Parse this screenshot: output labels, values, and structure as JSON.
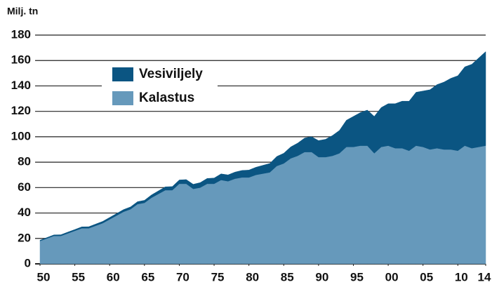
{
  "chart_data": {
    "type": "area",
    "stacked": true,
    "y_label": "Milj. tn",
    "x": [
      1950,
      1951,
      1952,
      1953,
      1954,
      1955,
      1956,
      1957,
      1958,
      1959,
      1960,
      1961,
      1962,
      1963,
      1964,
      1965,
      1966,
      1967,
      1968,
      1969,
      1970,
      1971,
      1972,
      1973,
      1974,
      1975,
      1976,
      1977,
      1978,
      1979,
      1980,
      1981,
      1982,
      1983,
      1984,
      1985,
      1986,
      1987,
      1988,
      1989,
      1990,
      1991,
      1992,
      1993,
      1994,
      1995,
      1996,
      1997,
      1998,
      1999,
      2000,
      2001,
      2002,
      2003,
      2004,
      2005,
      2006,
      2007,
      2008,
      2009,
      2010,
      2011,
      2012,
      2013,
      2014
    ],
    "series": [
      {
        "name": "Kalastus",
        "color": "#6699bb",
        "values": [
          18,
          20,
          22,
          22,
          24,
          26,
          28,
          28,
          30,
          32,
          35,
          38,
          41,
          43,
          47,
          48,
          52,
          55,
          58,
          58,
          63,
          63,
          59,
          60,
          63,
          63,
          66,
          65,
          67,
          68,
          68,
          70,
          71,
          72,
          77,
          79,
          83,
          85,
          88,
          88,
          84,
          84,
          85,
          87,
          92,
          92,
          93,
          93,
          87,
          92,
          93,
          91,
          91,
          89,
          93,
          92,
          90,
          91,
          90,
          90,
          89,
          93,
          91,
          92,
          93
        ]
      },
      {
        "name": "Vesiviljely",
        "color": "#0b5582",
        "values": [
          0.6,
          0.7,
          0.8,
          0.9,
          1,
          1,
          1.1,
          1.2,
          1.3,
          1.4,
          1.5,
          1.6,
          1.7,
          1.8,
          1.9,
          2,
          2.2,
          2.4,
          2.6,
          2.8,
          3,
          3.3,
          3.6,
          3.9,
          4.2,
          4.5,
          4.8,
          5,
          5.2,
          5.5,
          5.8,
          6,
          6.5,
          7,
          7.5,
          8,
          9,
          10,
          11,
          12,
          13,
          14,
          16,
          18,
          21,
          24,
          26,
          28,
          29,
          31,
          33,
          35,
          37,
          39,
          42,
          44,
          47,
          50,
          53,
          56,
          59,
          62,
          66,
          70,
          74
        ]
      }
    ],
    "xlim": [
      1950,
      2014
    ],
    "xticks": [
      {
        "value": 1950,
        "label": "50"
      },
      {
        "value": 1955,
        "label": "55"
      },
      {
        "value": 1960,
        "label": "60"
      },
      {
        "value": 1965,
        "label": "65"
      },
      {
        "value": 1970,
        "label": "70"
      },
      {
        "value": 1975,
        "label": "75"
      },
      {
        "value": 1980,
        "label": "80"
      },
      {
        "value": 1985,
        "label": "85"
      },
      {
        "value": 1990,
        "label": "90"
      },
      {
        "value": 1995,
        "label": "95"
      },
      {
        "value": 2000,
        "label": "00"
      },
      {
        "value": 2005,
        "label": "05"
      },
      {
        "value": 2010,
        "label": "10"
      },
      {
        "value": 2014,
        "label": "14"
      }
    ],
    "ylim": [
      0,
      180
    ],
    "yticks": [
      0,
      20,
      40,
      60,
      80,
      100,
      120,
      140,
      160,
      180
    ],
    "grid": true
  }
}
